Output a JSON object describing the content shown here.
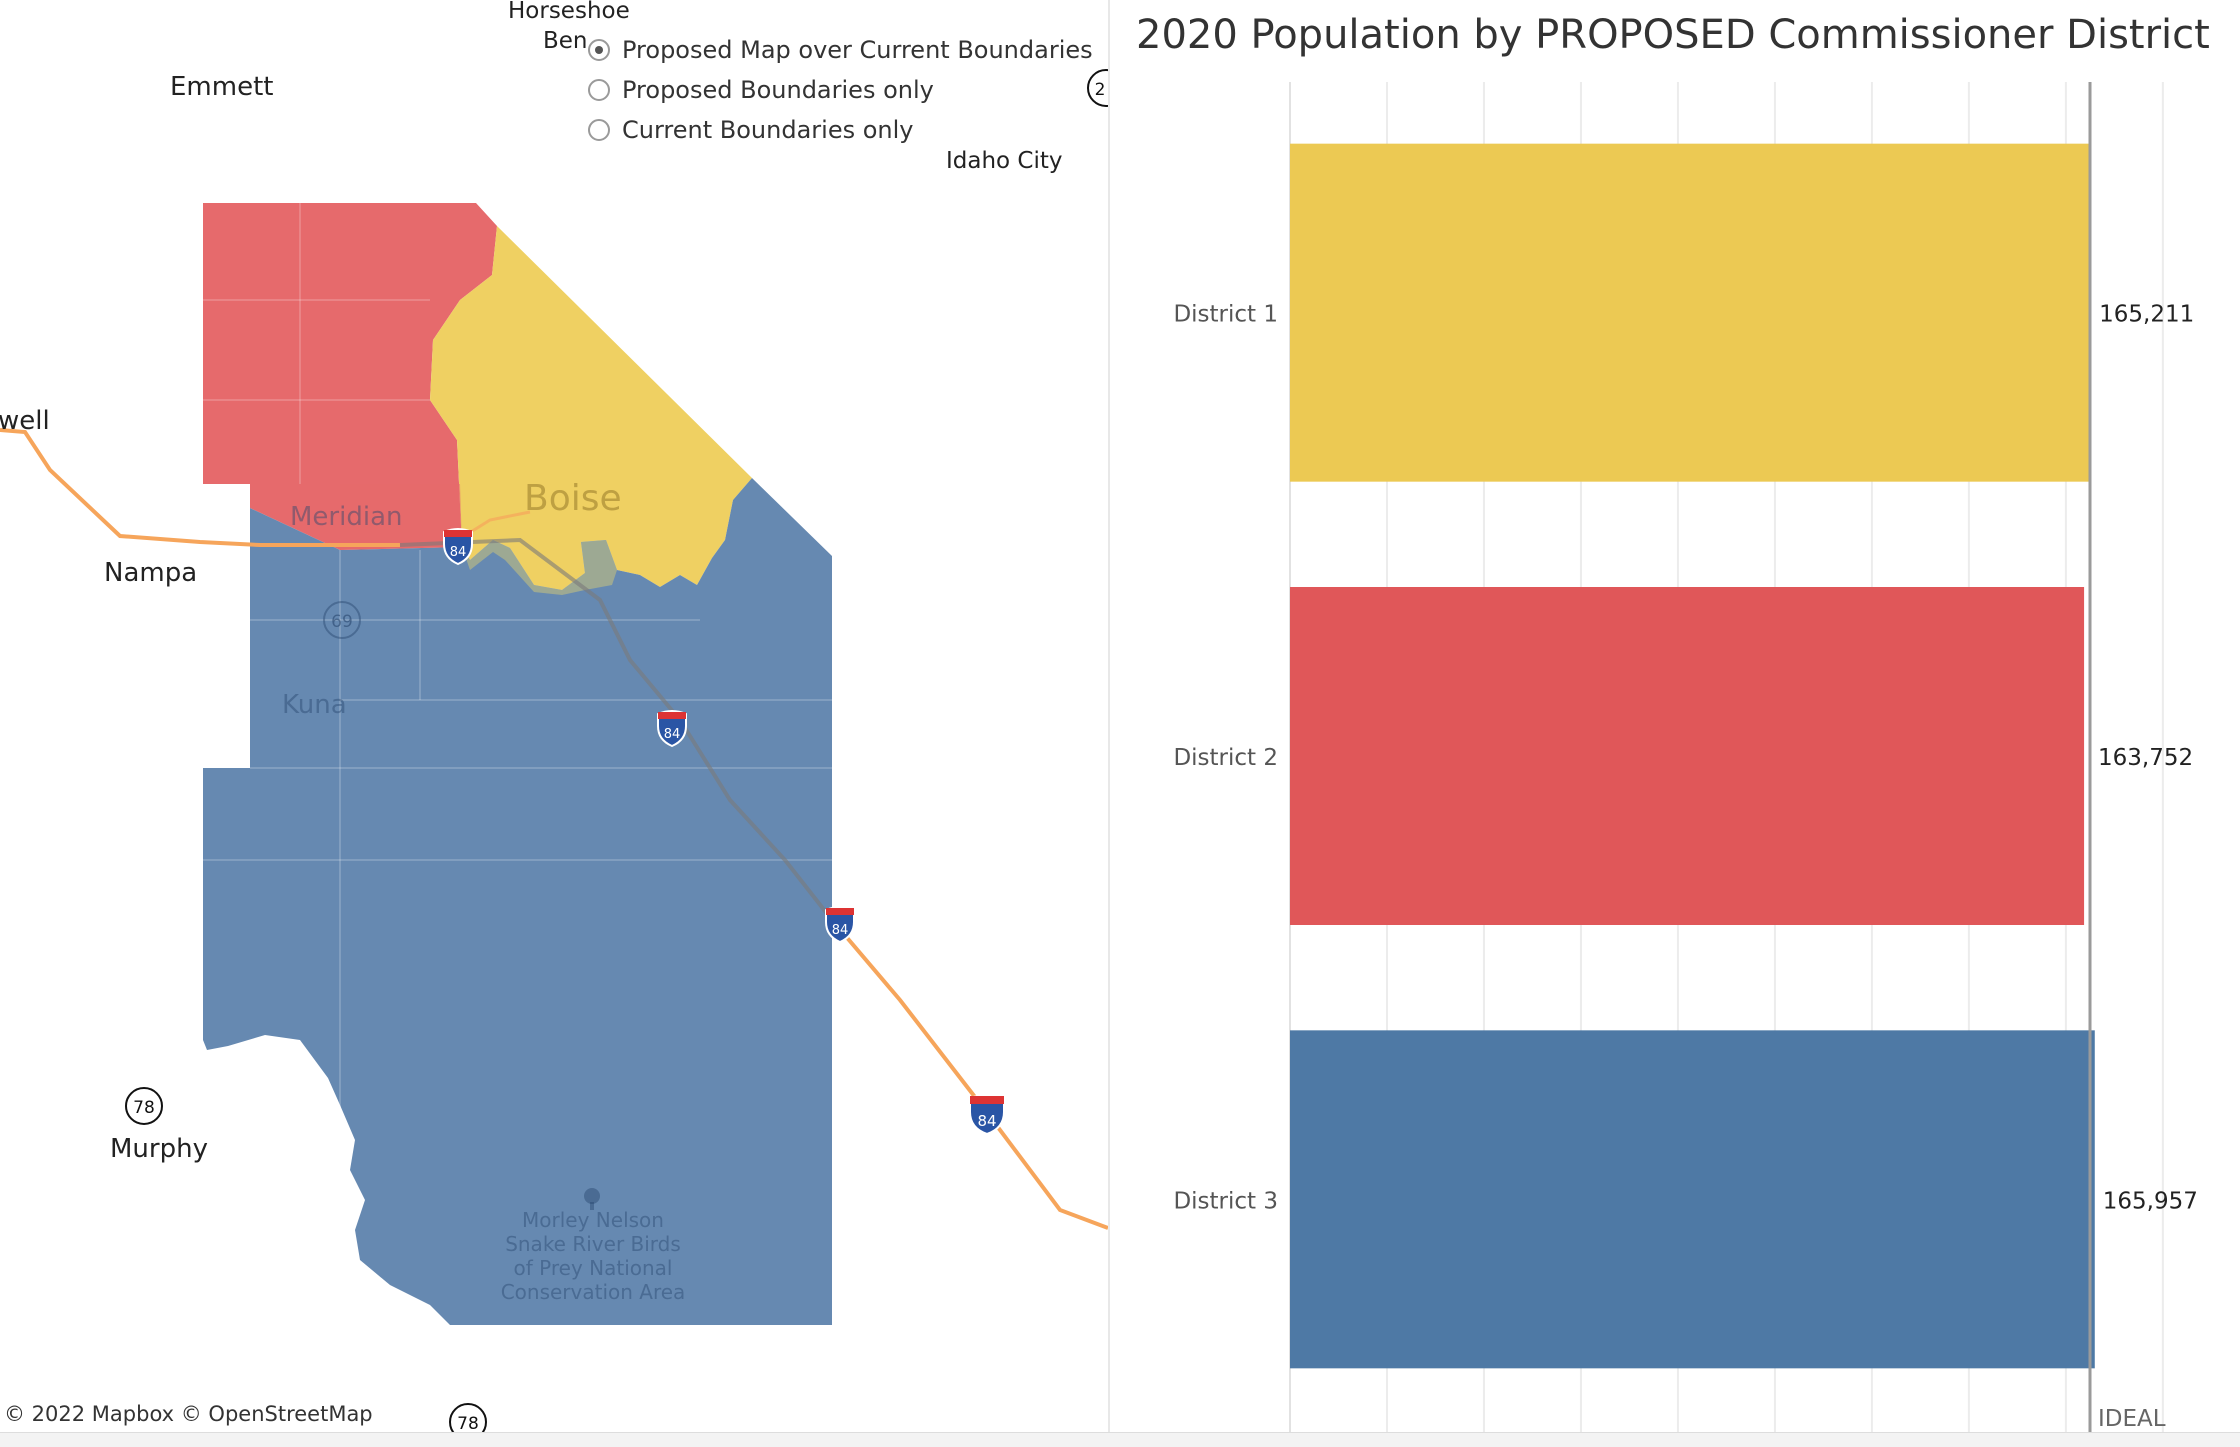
{
  "map": {
    "view_options": [
      {
        "label": "Proposed Map over Current Boundaries",
        "selected": true
      },
      {
        "label": "Proposed Boundaries only",
        "selected": false
      },
      {
        "label": "Current Boundaries only",
        "selected": false
      }
    ],
    "places": {
      "horseshoe_line1": "Horseshoe",
      "horseshoe_line2": "Ben",
      "emmett": "Emmett",
      "idaho_city": "Idaho City",
      "caldwell_partial": "well",
      "nampa": "Nampa",
      "meridian": "Meridian",
      "boise": "Boise",
      "kuna": "Kuna",
      "murphy": "Murphy",
      "park": "Morley Nelson Snake River Birds of Prey National Conservation Area"
    },
    "route_shields": {
      "interstate": "84",
      "state_69": "69",
      "state_78": "78",
      "partial_right": "2"
    },
    "district_colors": {
      "district_1": "#efd062",
      "district_2": "#e66a6c",
      "district_3": "#6689b1"
    },
    "attribution": "© 2022 Mapbox  © OpenStreetMap"
  },
  "chart_data": {
    "type": "bar",
    "orientation": "horizontal",
    "title": "2020 Population by PROPOSED Commissioner District",
    "categories": [
      "District 1",
      "District 2",
      "District 3"
    ],
    "values": [
      165211,
      163752,
      165957
    ],
    "value_labels": [
      "165,211",
      "163,752",
      "165,957"
    ],
    "colors": [
      "#ecc953",
      "#e05759",
      "#4e79a5"
    ],
    "reference_line_label": "IDEAL",
    "reference_value": 164973,
    "xlim": [
      0,
      180000
    ],
    "grid": true
  }
}
